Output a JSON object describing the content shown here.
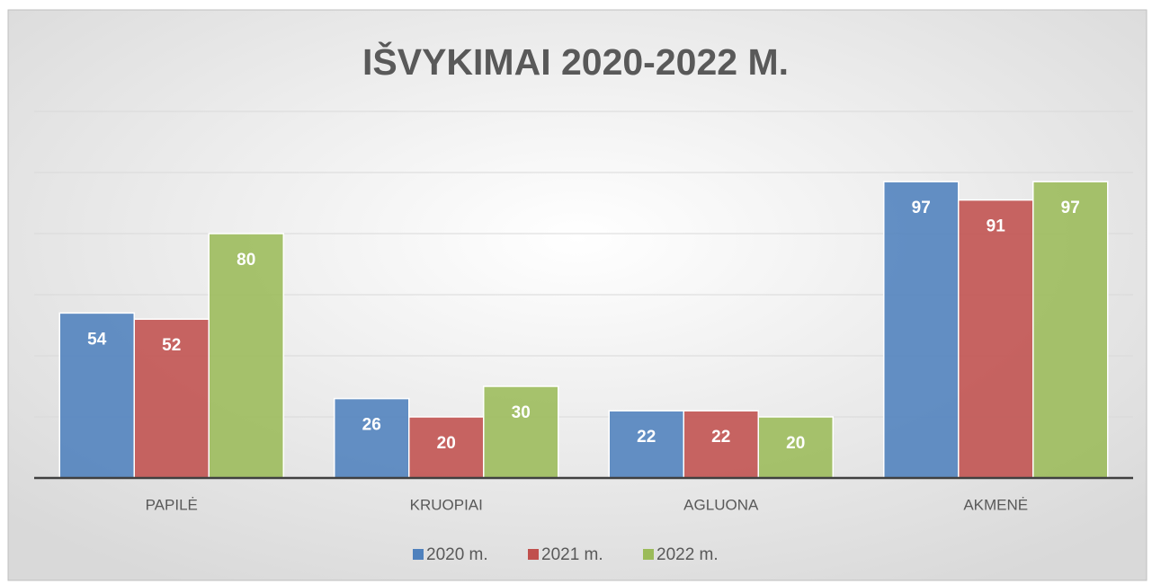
{
  "chart_data": {
    "type": "bar",
    "title": "IŠVYKIMAI 2020-2022 M.",
    "categories": [
      "PAPILĖ",
      "KRUOPIAI",
      "AGLUONA",
      "AKMENĖ"
    ],
    "series": [
      {
        "name": "2020 m.",
        "color": "#4f81bd",
        "values": [
          54,
          26,
          22,
          97
        ]
      },
      {
        "name": "2021 m.",
        "color": "#c0504d",
        "values": [
          52,
          20,
          22,
          91
        ]
      },
      {
        "name": "2022 m.",
        "color": "#9bbb59",
        "values": [
          80,
          30,
          20,
          97
        ]
      }
    ],
    "ylim": [
      0,
      120
    ],
    "yticks": [
      0,
      20,
      40,
      60,
      80,
      100,
      120
    ],
    "grid": true,
    "legend": "bottom"
  }
}
